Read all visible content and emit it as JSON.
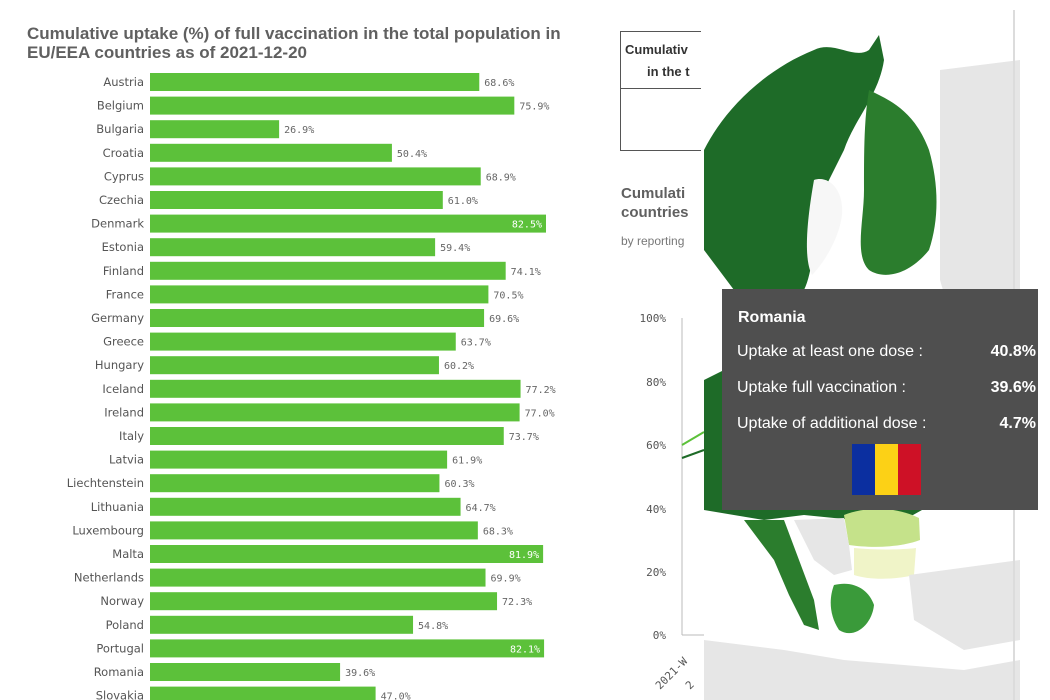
{
  "left_chart": {
    "title": "Cumulative uptake (%) of full vaccination in the total population in EU/EEA countries as of 2021-12-20"
  },
  "chart_data": [
    {
      "type": "bar",
      "orientation": "horizontal",
      "title": "Cumulative uptake (%) of full vaccination in the total population in EU/EEA countries as of 2021-12-20",
      "xlim": [
        0,
        100
      ],
      "bar_color": "#5cc13a",
      "value_format": "%",
      "categories": [
        "Austria",
        "Belgium",
        "Bulgaria",
        "Croatia",
        "Cyprus",
        "Czechia",
        "Denmark",
        "Estonia",
        "Finland",
        "France",
        "Germany",
        "Greece",
        "Hungary",
        "Iceland",
        "Ireland",
        "Italy",
        "Latvia",
        "Liechtenstein",
        "Lithuania",
        "Luxembourg",
        "Malta",
        "Netherlands",
        "Norway",
        "Poland",
        "Portugal",
        "Romania",
        "Slovakia"
      ],
      "values": [
        68.6,
        75.9,
        26.9,
        50.4,
        68.9,
        61.0,
        82.5,
        59.4,
        74.1,
        70.5,
        69.6,
        63.7,
        60.2,
        77.2,
        77.0,
        73.7,
        61.9,
        60.3,
        64.7,
        68.3,
        81.9,
        69.9,
        72.3,
        54.8,
        82.1,
        39.6,
        47.0
      ],
      "data_labels": [
        "68.6%",
        "75.9%",
        "26.9%",
        "50.4%",
        "68.9%",
        "61.0%",
        "82.5%",
        "59.4%",
        "74.1%",
        "70.5%",
        "69.6%",
        "63.7%",
        "60.2%",
        "77.2%",
        "77.0%",
        "73.7%",
        "61.9%",
        "60.3%",
        "64.7%",
        "68.3%",
        "81.9%",
        "69.9%",
        "72.3%",
        "54.8%",
        "82.1%",
        "39.6%",
        "47.0%"
      ],
      "labels_inside": [
        "Denmark",
        "Malta",
        "Portugal"
      ]
    },
    {
      "type": "line",
      "title": "Cumulati… countries…",
      "ylim": [
        0,
        100
      ],
      "yticks": [
        "100%",
        "80%",
        "60%",
        "40%",
        "20%",
        "0%"
      ],
      "xticks_visible": [
        "2021-W…",
        "2…"
      ],
      "series": []
    }
  ],
  "partial_table": {
    "line1": "Cumulativ",
    "line2": "in the t"
  },
  "partial_chart": {
    "title_line1": "Cumulati",
    "title_line2": "countries",
    "subtitle": "by reporting",
    "x_tick_1": "2021-W",
    "x_tick_2": "2"
  },
  "tooltip": {
    "country": "Romania",
    "rows": [
      {
        "label": "Uptake at least one dose :",
        "value": "40.8%"
      },
      {
        "label": "Uptake full vaccination :",
        "value": "39.6%"
      },
      {
        "label": "Uptake of additional dose :",
        "value": "4.7%"
      }
    ],
    "flag_colors": [
      "#0b2fa0",
      "#fcd116",
      "#ce1126"
    ]
  },
  "colors": {
    "bar": "#5cc13a",
    "map_dark_green": "#1e6b28",
    "map_mid_green": "#3a9a3a",
    "map_light_green": "#c5e28a",
    "map_pale": "#f0f4c8",
    "map_outside": "#e6e6e6",
    "tooltip_bg": "#4f4f4f"
  }
}
